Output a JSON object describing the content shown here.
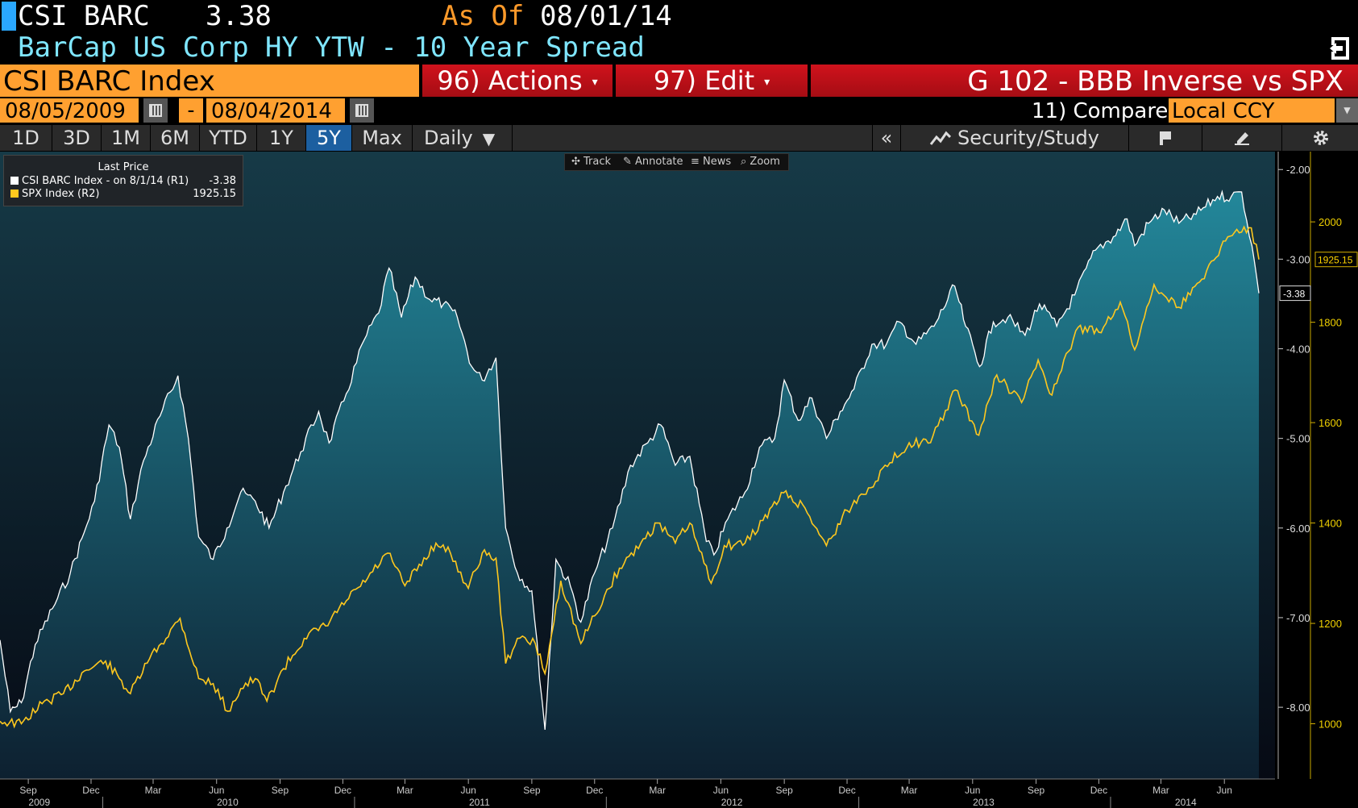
{
  "header": {
    "ticker": "CSI BARC",
    "last_price": "3.38",
    "as_of_label": "As Of",
    "as_of_date": "08/01/14",
    "subtitle": "BarCap US Corp HY YTW - 10 Year Spread"
  },
  "command_bar": {
    "index_name": "CSI BARC Index",
    "actions_label": "96) Actions",
    "edit_label": "97) Edit",
    "chart_name": "G 102 - BBB Inverse vs SPX"
  },
  "date_range": {
    "start": "08/05/2009",
    "separator": "-",
    "end": "08/04/2014",
    "compare_label": "11) Compare",
    "currency": "Local CCY"
  },
  "range_buttons": [
    "1D",
    "3D",
    "1M",
    "6M",
    "YTD",
    "1Y",
    "5Y",
    "Max"
  ],
  "active_range": "5Y",
  "frequency": "Daily",
  "toolbar": {
    "collapse": "«",
    "security_study": "Security/Study"
  },
  "chart_tools": {
    "track": "Track",
    "annotate": "Annotate",
    "news": "News",
    "zoom": "Zoom"
  },
  "legend": {
    "title": "Last Price",
    "r1_label": "CSI BARC Index -  on 8/1/14  (R1)",
    "r1_value": "-3.38",
    "r2_label": "SPX Index  (R2)",
    "r2_value": "1925.15"
  },
  "colors": {
    "background_top": "#163a47",
    "background_bottom": "#060a14",
    "area_top": "#23879a",
    "area_bottom": "#0d2030",
    "csi_line": "#ffffff",
    "spx_line": "#ffc81e",
    "orange": "#ffa030",
    "red": "#c8101a",
    "active_button": "#1c5fa0"
  },
  "chart_data": {
    "type": "line",
    "x_months": [
      "Sep",
      "Dec",
      "Mar",
      "Jun",
      "Sep",
      "Dec",
      "Mar",
      "Jun",
      "Sep",
      "Dec",
      "Mar",
      "Jun",
      "Sep",
      "Dec",
      "Mar",
      "Jun",
      "Sep",
      "Dec",
      "Mar",
      "Jun"
    ],
    "x_years": [
      "2009",
      "2010",
      "2011",
      "2012",
      "2013",
      "2014"
    ],
    "xlim": [
      "2009-08-05",
      "2014-08-04"
    ],
    "series": [
      {
        "name": "CSI BARC Index",
        "axis": "R1",
        "style": "area",
        "ylim": [
          -8.8,
          -1.8
        ],
        "ticks": [
          "-2.00",
          "-3.00",
          "-4.00",
          "-5.00",
          "-6.00",
          "-7.00",
          "-8.00"
        ],
        "last_label": "-3.38",
        "points": [
          [
            "2009-08-05",
            -7.25
          ],
          [
            "2009-08-20",
            -8.05
          ],
          [
            "2009-09-05",
            -7.95
          ],
          [
            "2009-09-25",
            -7.3
          ],
          [
            "2009-10-20",
            -6.9
          ],
          [
            "2009-11-15",
            -6.5
          ],
          [
            "2009-12-05",
            -6.05
          ],
          [
            "2009-12-20",
            -5.7
          ],
          [
            "2010-01-10",
            -4.85
          ],
          [
            "2010-01-25",
            -5.1
          ],
          [
            "2010-02-10",
            -5.9
          ],
          [
            "2010-03-01",
            -5.25
          ],
          [
            "2010-03-25",
            -4.75
          ],
          [
            "2010-04-20",
            -4.3
          ],
          [
            "2010-05-05",
            -5.0
          ],
          [
            "2010-05-20",
            -6.1
          ],
          [
            "2010-06-10",
            -6.35
          ],
          [
            "2010-06-30",
            -6.0
          ],
          [
            "2010-07-20",
            -5.6
          ],
          [
            "2010-08-10",
            -5.7
          ],
          [
            "2010-08-30",
            -6.0
          ],
          [
            "2010-09-20",
            -5.6
          ],
          [
            "2010-10-15",
            -5.15
          ],
          [
            "2010-11-10",
            -4.7
          ],
          [
            "2010-11-25",
            -5.05
          ],
          [
            "2010-12-20",
            -4.5
          ],
          [
            "2011-01-15",
            -3.9
          ],
          [
            "2011-02-05",
            -3.6
          ],
          [
            "2011-02-20",
            -3.1
          ],
          [
            "2011-03-10",
            -3.65
          ],
          [
            "2011-03-30",
            -3.2
          ],
          [
            "2011-04-20",
            -3.45
          ],
          [
            "2011-05-10",
            -3.5
          ],
          [
            "2011-05-30",
            -3.65
          ],
          [
            "2011-06-20",
            -4.2
          ],
          [
            "2011-07-05",
            -4.35
          ],
          [
            "2011-07-25",
            -4.1
          ],
          [
            "2011-08-08",
            -6.0
          ],
          [
            "2011-08-25",
            -6.5
          ],
          [
            "2011-09-15",
            -6.7
          ],
          [
            "2011-10-04",
            -8.25
          ],
          [
            "2011-10-20",
            -6.35
          ],
          [
            "2011-11-10",
            -6.65
          ],
          [
            "2011-11-25",
            -7.05
          ],
          [
            "2011-12-15",
            -6.5
          ],
          [
            "2012-01-10",
            -6.0
          ],
          [
            "2012-02-05",
            -5.3
          ],
          [
            "2012-03-01",
            -5.05
          ],
          [
            "2012-03-20",
            -4.85
          ],
          [
            "2012-04-10",
            -5.3
          ],
          [
            "2012-05-01",
            -5.2
          ],
          [
            "2012-05-25",
            -6.15
          ],
          [
            "2012-06-05",
            -6.3
          ],
          [
            "2012-06-25",
            -5.9
          ],
          [
            "2012-07-20",
            -5.6
          ],
          [
            "2012-08-10",
            -5.1
          ],
          [
            "2012-09-01",
            -5.0
          ],
          [
            "2012-09-15",
            -4.35
          ],
          [
            "2012-10-05",
            -4.8
          ],
          [
            "2012-10-25",
            -4.55
          ],
          [
            "2012-11-15",
            -5.0
          ],
          [
            "2012-12-05",
            -4.7
          ],
          [
            "2012-12-25",
            -4.45
          ],
          [
            "2013-01-20",
            -3.95
          ],
          [
            "2013-02-10",
            -3.95
          ],
          [
            "2013-03-01",
            -3.7
          ],
          [
            "2013-03-25",
            -3.95
          ],
          [
            "2013-04-20",
            -3.75
          ],
          [
            "2013-05-20",
            -3.3
          ],
          [
            "2013-06-05",
            -3.75
          ],
          [
            "2013-06-25",
            -4.2
          ],
          [
            "2013-07-15",
            -3.7
          ],
          [
            "2013-08-05",
            -3.65
          ],
          [
            "2013-08-30",
            -3.85
          ],
          [
            "2013-09-20",
            -3.5
          ],
          [
            "2013-10-15",
            -3.75
          ],
          [
            "2013-11-10",
            -3.4
          ],
          [
            "2013-12-10",
            -2.9
          ],
          [
            "2014-01-05",
            -2.75
          ],
          [
            "2014-01-25",
            -2.55
          ],
          [
            "2014-02-05",
            -2.85
          ],
          [
            "2014-02-25",
            -2.6
          ],
          [
            "2014-03-20",
            -2.45
          ],
          [
            "2014-04-10",
            -2.6
          ],
          [
            "2014-05-05",
            -2.5
          ],
          [
            "2014-06-05",
            -2.3
          ],
          [
            "2014-06-25",
            -2.3
          ],
          [
            "2014-07-10",
            -2.25
          ],
          [
            "2014-07-25",
            -2.85
          ],
          [
            "2014-08-04",
            -3.38
          ]
        ]
      },
      {
        "name": "SPX Index",
        "axis": "R2",
        "style": "line",
        "ylim": [
          890,
          2140
        ],
        "ticks": [
          "1000",
          "1200",
          "1400",
          "1600",
          "1800",
          "2000"
        ],
        "last_label": "1925.15",
        "points": [
          [
            "2009-08-05",
            1005
          ],
          [
            "2009-09-05",
            1000
          ],
          [
            "2009-10-05",
            1040
          ],
          [
            "2009-11-05",
            1060
          ],
          [
            "2009-12-05",
            1105
          ],
          [
            "2010-01-05",
            1125
          ],
          [
            "2010-01-25",
            1090
          ],
          [
            "2010-02-10",
            1060
          ],
          [
            "2010-03-10",
            1130
          ],
          [
            "2010-04-23",
            1210
          ],
          [
            "2010-05-20",
            1090
          ],
          [
            "2010-06-10",
            1080
          ],
          [
            "2010-07-01",
            1025
          ],
          [
            "2010-07-20",
            1070
          ],
          [
            "2010-08-10",
            1090
          ],
          [
            "2010-08-27",
            1045
          ],
          [
            "2010-09-20",
            1110
          ],
          [
            "2010-10-20",
            1170
          ],
          [
            "2010-11-20",
            1195
          ],
          [
            "2010-12-20",
            1245
          ],
          [
            "2011-01-20",
            1290
          ],
          [
            "2011-02-18",
            1340
          ],
          [
            "2011-03-15",
            1275
          ],
          [
            "2011-04-29",
            1360
          ],
          [
            "2011-05-20",
            1340
          ],
          [
            "2011-06-15",
            1270
          ],
          [
            "2011-07-05",
            1340
          ],
          [
            "2011-07-25",
            1330
          ],
          [
            "2011-08-08",
            1120
          ],
          [
            "2011-08-25",
            1170
          ],
          [
            "2011-09-20",
            1160
          ],
          [
            "2011-10-04",
            1100
          ],
          [
            "2011-10-27",
            1285
          ],
          [
            "2011-11-25",
            1160
          ],
          [
            "2011-12-15",
            1215
          ],
          [
            "2012-01-20",
            1310
          ],
          [
            "2012-02-20",
            1360
          ],
          [
            "2012-03-15",
            1400
          ],
          [
            "2012-04-10",
            1360
          ],
          [
            "2012-05-01",
            1400
          ],
          [
            "2012-06-01",
            1280
          ],
          [
            "2012-06-20",
            1355
          ],
          [
            "2012-07-20",
            1360
          ],
          [
            "2012-08-15",
            1405
          ],
          [
            "2012-09-14",
            1460
          ],
          [
            "2012-10-15",
            1430
          ],
          [
            "2012-11-15",
            1355
          ],
          [
            "2012-12-15",
            1425
          ],
          [
            "2013-01-15",
            1470
          ],
          [
            "2013-02-15",
            1520
          ],
          [
            "2013-03-15",
            1560
          ],
          [
            "2013-04-15",
            1560
          ],
          [
            "2013-05-21",
            1665
          ],
          [
            "2013-06-24",
            1575
          ],
          [
            "2013-07-20",
            1695
          ],
          [
            "2013-08-25",
            1640
          ],
          [
            "2013-09-18",
            1725
          ],
          [
            "2013-10-08",
            1655
          ],
          [
            "2013-11-15",
            1790
          ],
          [
            "2013-12-15",
            1780
          ],
          [
            "2014-01-15",
            1840
          ],
          [
            "2014-02-05",
            1745
          ],
          [
            "2014-03-05",
            1875
          ],
          [
            "2014-04-10",
            1830
          ],
          [
            "2014-05-10",
            1880
          ],
          [
            "2014-06-10",
            1950
          ],
          [
            "2014-07-03",
            1985
          ],
          [
            "2014-07-24",
            1988
          ],
          [
            "2014-08-04",
            1925.15
          ]
        ]
      }
    ],
    "legend": "top-left",
    "grid": false
  }
}
